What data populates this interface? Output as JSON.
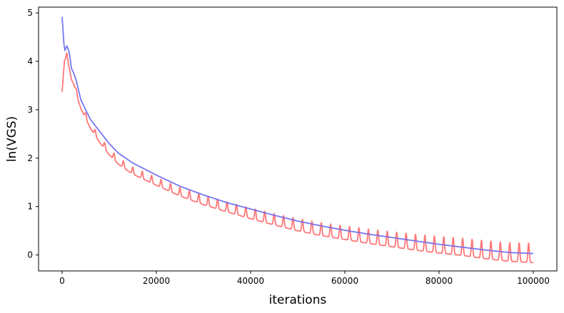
{
  "chart_data": {
    "type": "line",
    "title": "",
    "xlabel": "iterations",
    "ylabel": "ln(VGS)",
    "xlim": [
      -5000,
      105000
    ],
    "ylim": [
      -0.33,
      5.12
    ],
    "xticks": [
      0,
      20000,
      40000,
      60000,
      80000,
      100000
    ],
    "xtick_labels": [
      "0",
      "20000",
      "40000",
      "60000",
      "80000",
      "100000"
    ],
    "yticks": [
      0,
      1,
      2,
      3,
      4,
      5
    ],
    "ytick_labels": [
      "0",
      "1",
      "2",
      "3",
      "4",
      "5"
    ],
    "grid": false,
    "legend": "none",
    "series": [
      {
        "color": "#ff6f6f",
        "style": "oscillating spikes every ~2000 iterations",
        "x": [
          0,
          500,
          1000,
          1500,
          2000,
          2500,
          3000,
          4000,
          5000,
          6000,
          8000,
          10000,
          12000,
          15000,
          20000,
          25000,
          30000,
          35000,
          40000,
          45000,
          50000,
          55000,
          60000,
          65000,
          70000,
          75000,
          80000,
          85000,
          90000,
          95000,
          100000
        ],
        "values": [
          3.45,
          4.1,
          4.15,
          3.95,
          3.7,
          3.6,
          3.4,
          3.1,
          2.9,
          2.7,
          2.4,
          2.15,
          1.95,
          1.75,
          1.52,
          1.3,
          1.12,
          0.97,
          0.83,
          0.7,
          0.58,
          0.48,
          0.4,
          0.32,
          0.25,
          0.18,
          0.12,
          0.07,
          0.0,
          -0.05,
          -0.08
        ],
        "spike_period": 2000,
        "spike_amplitude": [
          0.1,
          0.4
        ]
      },
      {
        "color": "#6f6ff0",
        "style": "smooth",
        "x": [
          0,
          500,
          1000,
          1500,
          2000,
          2500,
          3000,
          4000,
          5000,
          6000,
          8000,
          10000,
          12000,
          15000,
          20000,
          25000,
          30000,
          35000,
          40000,
          45000,
          50000,
          55000,
          60000,
          65000,
          70000,
          75000,
          80000,
          85000,
          90000,
          95000,
          100000
        ],
        "values": [
          4.92,
          4.2,
          4.32,
          4.2,
          3.85,
          3.75,
          3.6,
          3.2,
          3.0,
          2.8,
          2.55,
          2.3,
          2.1,
          1.9,
          1.65,
          1.42,
          1.24,
          1.08,
          0.95,
          0.82,
          0.7,
          0.6,
          0.51,
          0.43,
          0.36,
          0.29,
          0.22,
          0.16,
          0.1,
          0.05,
          0.03
        ]
      }
    ]
  }
}
